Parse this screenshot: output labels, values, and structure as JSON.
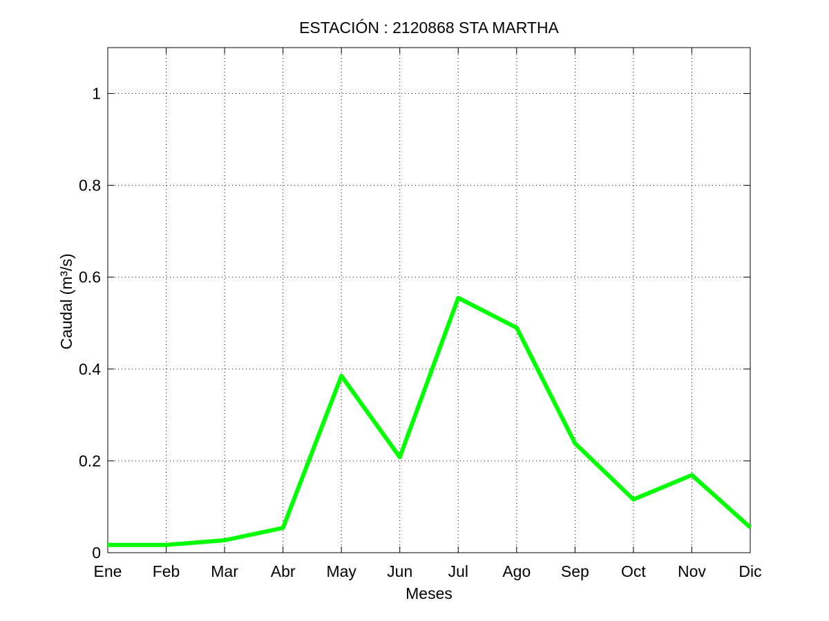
{
  "chart_data": {
    "type": "line",
    "title": "ESTACIÓN :  2120868  STA MARTHA",
    "xlabel": "Meses",
    "ylabel": "Caudal (m³/s)",
    "categories": [
      "Ene",
      "Feb",
      "Mar",
      "Abr",
      "May",
      "Jun",
      "Jul",
      "Ago",
      "Sep",
      "Oct",
      "Nov",
      "Dic"
    ],
    "series": [
      {
        "values": [
          0.017,
          0.017,
          0.027,
          0.054,
          0.385,
          0.208,
          0.555,
          0.49,
          0.238,
          0.116,
          0.169,
          0.055
        ],
        "color": "#00ff00"
      }
    ],
    "ylim": [
      0,
      1.1
    ],
    "yticks": [
      0,
      0.2,
      0.4,
      0.6,
      0.8,
      1
    ],
    "ytick_labels": [
      "0",
      "0.2",
      "0.4",
      "0.6",
      "0.8",
      "1"
    ],
    "grid": true
  }
}
